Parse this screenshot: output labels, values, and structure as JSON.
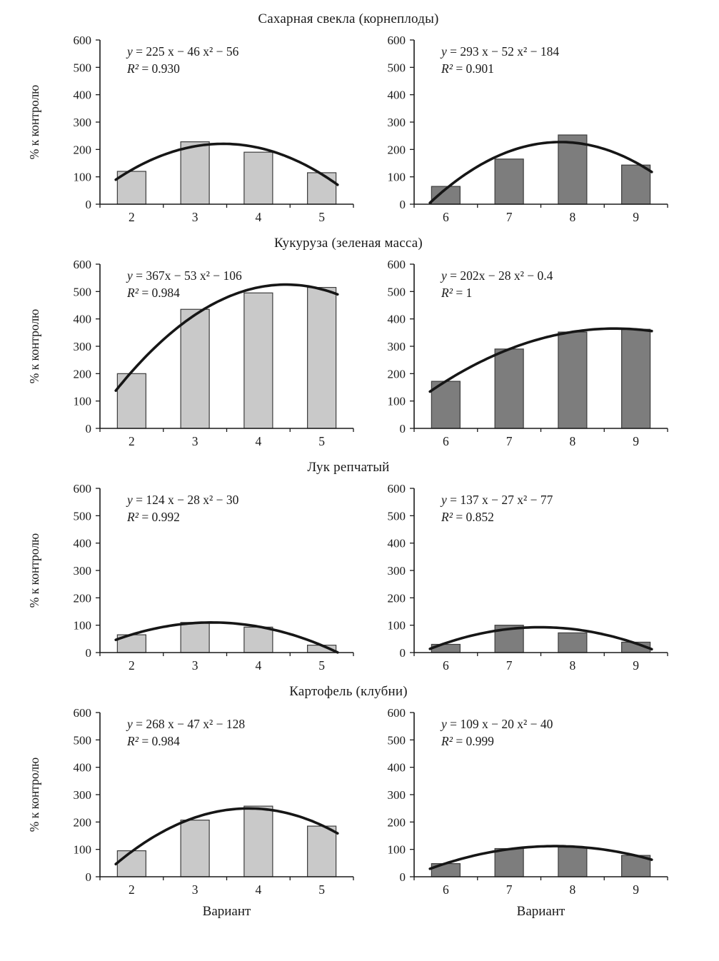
{
  "figure": {
    "ylabel": "% к контролю",
    "xlabel": "Вариант",
    "ylim": [
      0,
      600
    ],
    "yticks": [
      0,
      100,
      200,
      300,
      400,
      500,
      600
    ],
    "axis_color": "#1a1a1a",
    "curve_color": "#161616",
    "light_bar_fill": "#c9c9c9",
    "dark_bar_fill": "#7d7d7d",
    "bar_stroke": "#3d3d3d"
  },
  "chart_data": [
    {
      "type": "bar",
      "title": "Сахарная свекла (корнеплоды)",
      "panels": [
        {
          "equation": "y = 225 x − 46 x² − 56",
          "r2": "R² = 0.930",
          "categories": [
            "2",
            "3",
            "4",
            "5"
          ],
          "values": [
            120,
            228,
            190,
            115
          ],
          "shade": "light",
          "show_ylabel": true,
          "show_xlabel": false
        },
        {
          "equation": "y = 293 x − 52 x² − 184",
          "r2": "R² = 0.901",
          "categories": [
            "6",
            "7",
            "8",
            "9"
          ],
          "values": [
            65,
            165,
            253,
            143
          ],
          "shade": "dark",
          "show_ylabel": false,
          "show_xlabel": false
        }
      ]
    },
    {
      "type": "bar",
      "title": "Кукуруза (зеленая масса)",
      "panels": [
        {
          "equation": "y = 367x − 53 x² − 106",
          "r2": "R² = 0.984",
          "categories": [
            "2",
            "3",
            "4",
            "5"
          ],
          "values": [
            200,
            435,
            495,
            515
          ],
          "shade": "light",
          "show_ylabel": true,
          "show_xlabel": false
        },
        {
          "equation": "y = 202x − 28 x² − 0.4",
          "r2": "R² = 1",
          "categories": [
            "6",
            "7",
            "8",
            "9"
          ],
          "values": [
            172,
            290,
            352,
            362
          ],
          "shade": "dark",
          "show_ylabel": false,
          "show_xlabel": false
        }
      ]
    },
    {
      "type": "bar",
      "title": "Лук репчатый",
      "panels": [
        {
          "equation": "y = 124 x − 28 x² − 30",
          "r2": "R² = 0.992",
          "categories": [
            "2",
            "3",
            "4",
            "5"
          ],
          "values": [
            65,
            110,
            93,
            27
          ],
          "shade": "light",
          "show_ylabel": true,
          "show_xlabel": false
        },
        {
          "equation": "y = 137 x − 27 x² − 77",
          "r2": "R² = 0.852",
          "categories": [
            "6",
            "7",
            "8",
            "9"
          ],
          "values": [
            30,
            100,
            72,
            38
          ],
          "shade": "dark",
          "show_ylabel": false,
          "show_xlabel": false
        }
      ]
    },
    {
      "type": "bar",
      "title": "Картофель (клубни)",
      "panels": [
        {
          "equation": "y = 268 x − 47 x² − 128",
          "r2": "R² = 0.984",
          "categories": [
            "2",
            "3",
            "4",
            "5"
          ],
          "values": [
            95,
            207,
            258,
            185
          ],
          "shade": "light",
          "show_ylabel": true,
          "show_xlabel": true
        },
        {
          "equation": "y = 109 x − 20 x² − 40",
          "r2": "R² = 0.999",
          "categories": [
            "6",
            "7",
            "8",
            "9"
          ],
          "values": [
            48,
            103,
            108,
            78
          ],
          "shade": "dark",
          "show_ylabel": false,
          "show_xlabel": true
        }
      ]
    }
  ]
}
